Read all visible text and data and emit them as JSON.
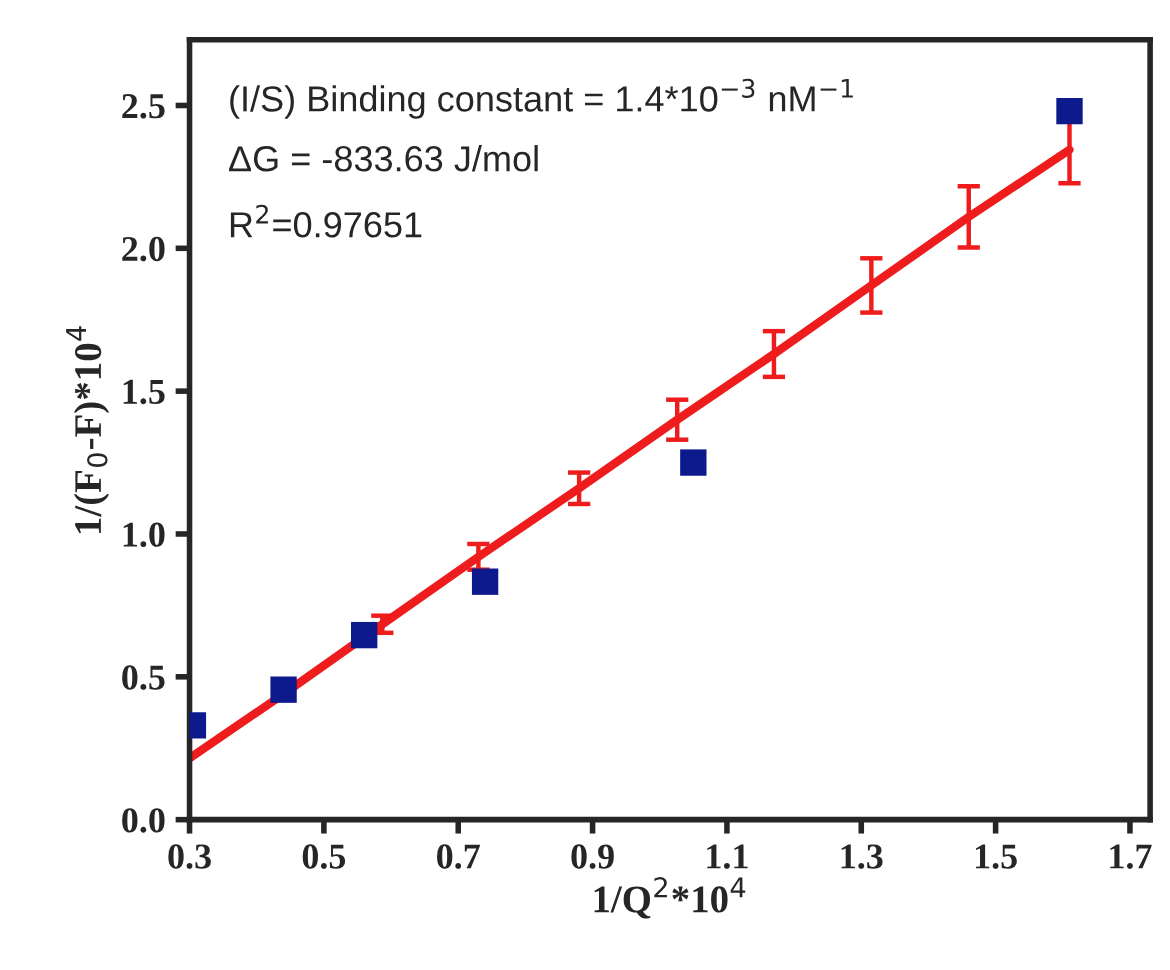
{
  "chart_data": {
    "type": "scatter",
    "xlabel": "1/Q$^{2}$*10$^{4}$",
    "ylabel": "1/(F$_{0}$-F)*10$^{4}$",
    "annotations": [
      "(I/S) Binding constant = 1.4*10$^{−3}$ nM$^{−1}$",
      "ΔG = -833.63 J/mol",
      "R$^{2}$=0.97651"
    ],
    "series": [
      {
        "marker": "square",
        "color": "#0d1a8c",
        "x": [
          0.305,
          0.44,
          0.56,
          0.74,
          1.05,
          1.61
        ],
        "values": [
          0.33,
          0.455,
          0.646,
          0.833,
          1.25,
          2.48
        ]
      },
      {
        "type": "line",
        "marker": "none",
        "color": "#ee1c1c",
        "x": [
          0.3,
          0.44,
          0.587,
          0.73,
          0.88,
          1.026,
          1.17,
          1.315,
          1.46,
          1.61
        ],
        "values": [
          0.215,
          0.44,
          0.684,
          0.92,
          1.16,
          1.4,
          1.63,
          1.87,
          2.11,
          2.345
        ],
        "errors": [
          null,
          null,
          0.03,
          0.045,
          0.055,
          0.07,
          0.08,
          0.095,
          0.107,
          0.117
        ]
      }
    ],
    "xlim": [
      0.3,
      1.73
    ],
    "ylim": [
      0,
      2.73
    ],
    "xticks": [
      0.3,
      0.5,
      0.7,
      0.9,
      1.1,
      1.3,
      1.5,
      1.7
    ],
    "yticks": [
      {
        "value": 0,
        "label": "0.0"
      },
      0.5,
      {
        "value": 1,
        "label": "1.0"
      },
      1.5,
      {
        "value": 2,
        "label": "2.0"
      },
      2.5
    ],
    "grid": false,
    "legend": false
  }
}
